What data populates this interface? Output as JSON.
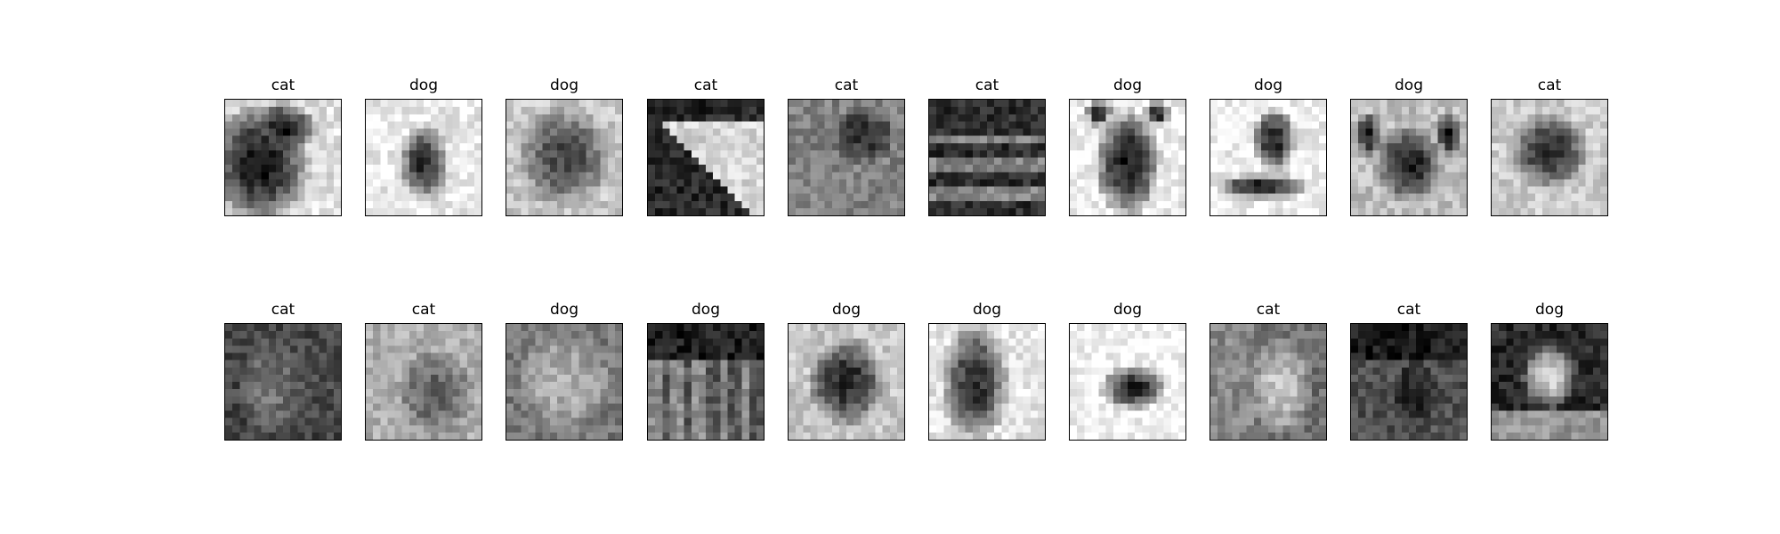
{
  "figure": {
    "rows": 2,
    "columns": 10,
    "panels": [
      {
        "label": "cat",
        "pattern": "cat-dark-silhouette"
      },
      {
        "label": "dog",
        "pattern": "small-dog-light"
      },
      {
        "label": "dog",
        "pattern": "dog-face-mid"
      },
      {
        "label": "cat",
        "pattern": "cat-diagonal-light"
      },
      {
        "label": "cat",
        "pattern": "cat-blurry-mid"
      },
      {
        "label": "cat",
        "pattern": "cat-dark-stripes"
      },
      {
        "label": "dog",
        "pattern": "dog-ears-light"
      },
      {
        "label": "dog",
        "pattern": "dog-lying-light"
      },
      {
        "label": "dog",
        "pattern": "pug-face"
      },
      {
        "label": "cat",
        "pattern": "cat-curled-light"
      },
      {
        "label": "cat",
        "pattern": "cat-dark-noisy"
      },
      {
        "label": "cat",
        "pattern": "cat-gray-soft"
      },
      {
        "label": "dog",
        "pattern": "dog-busy-mid"
      },
      {
        "label": "dog",
        "pattern": "dog-dark-grass"
      },
      {
        "label": "dog",
        "pattern": "dog-round-dark"
      },
      {
        "label": "dog",
        "pattern": "dog-standing-light"
      },
      {
        "label": "dog",
        "pattern": "dog-lying-white"
      },
      {
        "label": "cat",
        "pattern": "cat-vertical-mid"
      },
      {
        "label": "cat",
        "pattern": "cat-dark-top"
      },
      {
        "label": "dog",
        "pattern": "dog-light-center"
      }
    ]
  },
  "colors": {
    "background": "#ffffff",
    "frame": "#000000",
    "text": "#000000"
  }
}
